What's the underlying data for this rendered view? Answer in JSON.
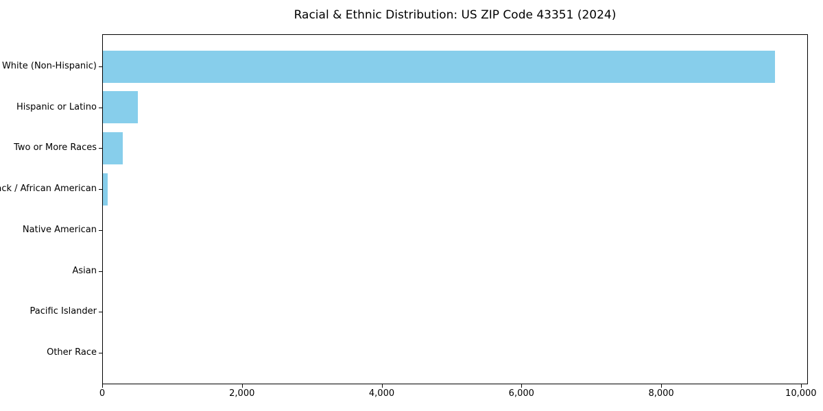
{
  "title": "Racial & Ethnic Distribution: US ZIP Code 43351 (2024)",
  "chart_data": {
    "type": "bar",
    "orientation": "horizontal",
    "title": "Racial & Ethnic Distribution: US ZIP Code 43351 (2024)",
    "categories": [
      "White (Non-Hispanic)",
      "Hispanic or Latino",
      "Two or More Races",
      "Black / African American",
      "Native American",
      "Asian",
      "Pacific Islander",
      "Other Race"
    ],
    "values": [
      9620,
      500,
      280,
      70,
      0,
      0,
      0,
      0
    ],
    "xlabel": "",
    "ylabel": "",
    "xlim": [
      0,
      10100
    ],
    "xticks": [
      0,
      2000,
      4000,
      6000,
      8000,
      10000
    ],
    "xtick_labels": [
      "0",
      "2,000",
      "4,000",
      "6,000",
      "8,000",
      "10,000"
    ],
    "bar_color": "#87CEEB",
    "text_color": "#000000",
    "background_color": "#ffffff",
    "grid": false,
    "legend": null
  }
}
